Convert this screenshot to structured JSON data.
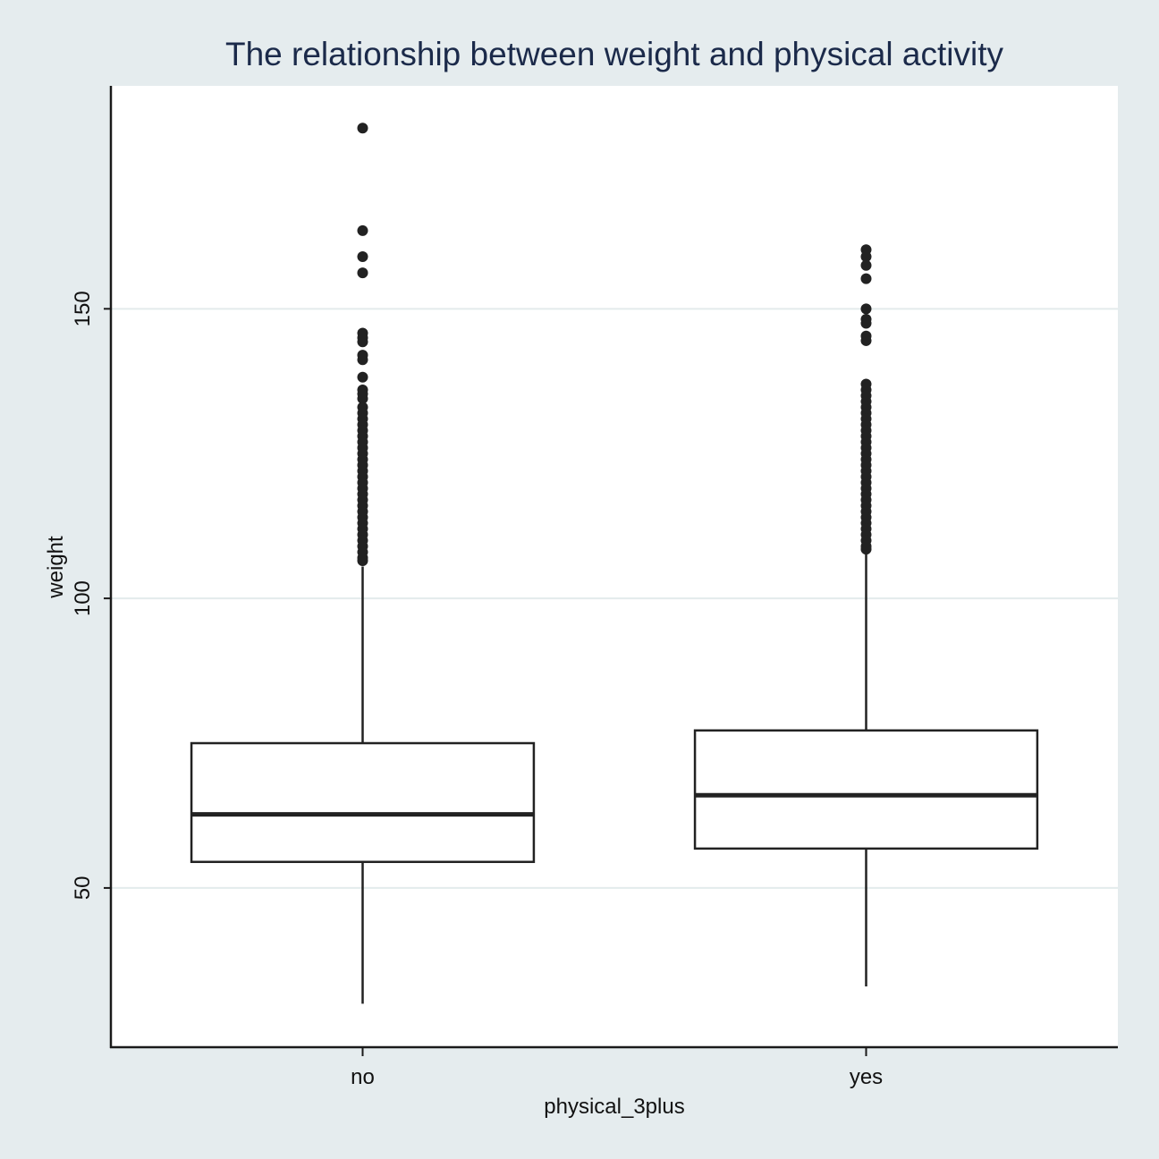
{
  "chart_data": {
    "type": "box",
    "title": "The relationship between weight and physical activity",
    "xlabel": "physical_3plus",
    "ylabel": "weight",
    "categories": [
      "no",
      "yes"
    ],
    "yticks": [
      50,
      100,
      150
    ],
    "ylim": [
      22.5,
      188.5
    ],
    "grid": true,
    "boxes": [
      {
        "category": "no",
        "whisker_low": 30,
        "q1": 54.5,
        "median": 62.7,
        "q3": 75,
        "whisker_high": 105.5,
        "outliers": [
          181.2,
          163.5,
          159,
          156.2,
          145.8,
          145,
          144.3,
          142,
          141.2,
          138.2,
          136,
          135.3,
          134.5,
          133,
          132,
          131,
          130,
          129,
          128,
          127,
          126,
          125,
          124,
          123,
          122,
          121,
          120,
          119,
          118,
          117,
          116,
          115,
          114,
          113,
          112,
          111,
          110,
          109,
          108,
          107,
          106.5
        ]
      },
      {
        "category": "yes",
        "whisker_low": 33,
        "q1": 56.8,
        "median": 66,
        "q3": 77.2,
        "whisker_high": 108,
        "outliers": [
          160.2,
          159,
          157.5,
          155.2,
          150,
          148.2,
          147.5,
          145.3,
          144.5,
          137,
          136,
          135,
          134,
          133,
          132,
          131,
          130,
          129,
          128,
          127,
          126,
          125,
          124,
          123,
          122,
          121,
          120,
          119,
          118,
          117,
          116,
          115,
          114,
          113,
          112,
          111,
          110,
          109,
          108.5
        ]
      }
    ]
  }
}
